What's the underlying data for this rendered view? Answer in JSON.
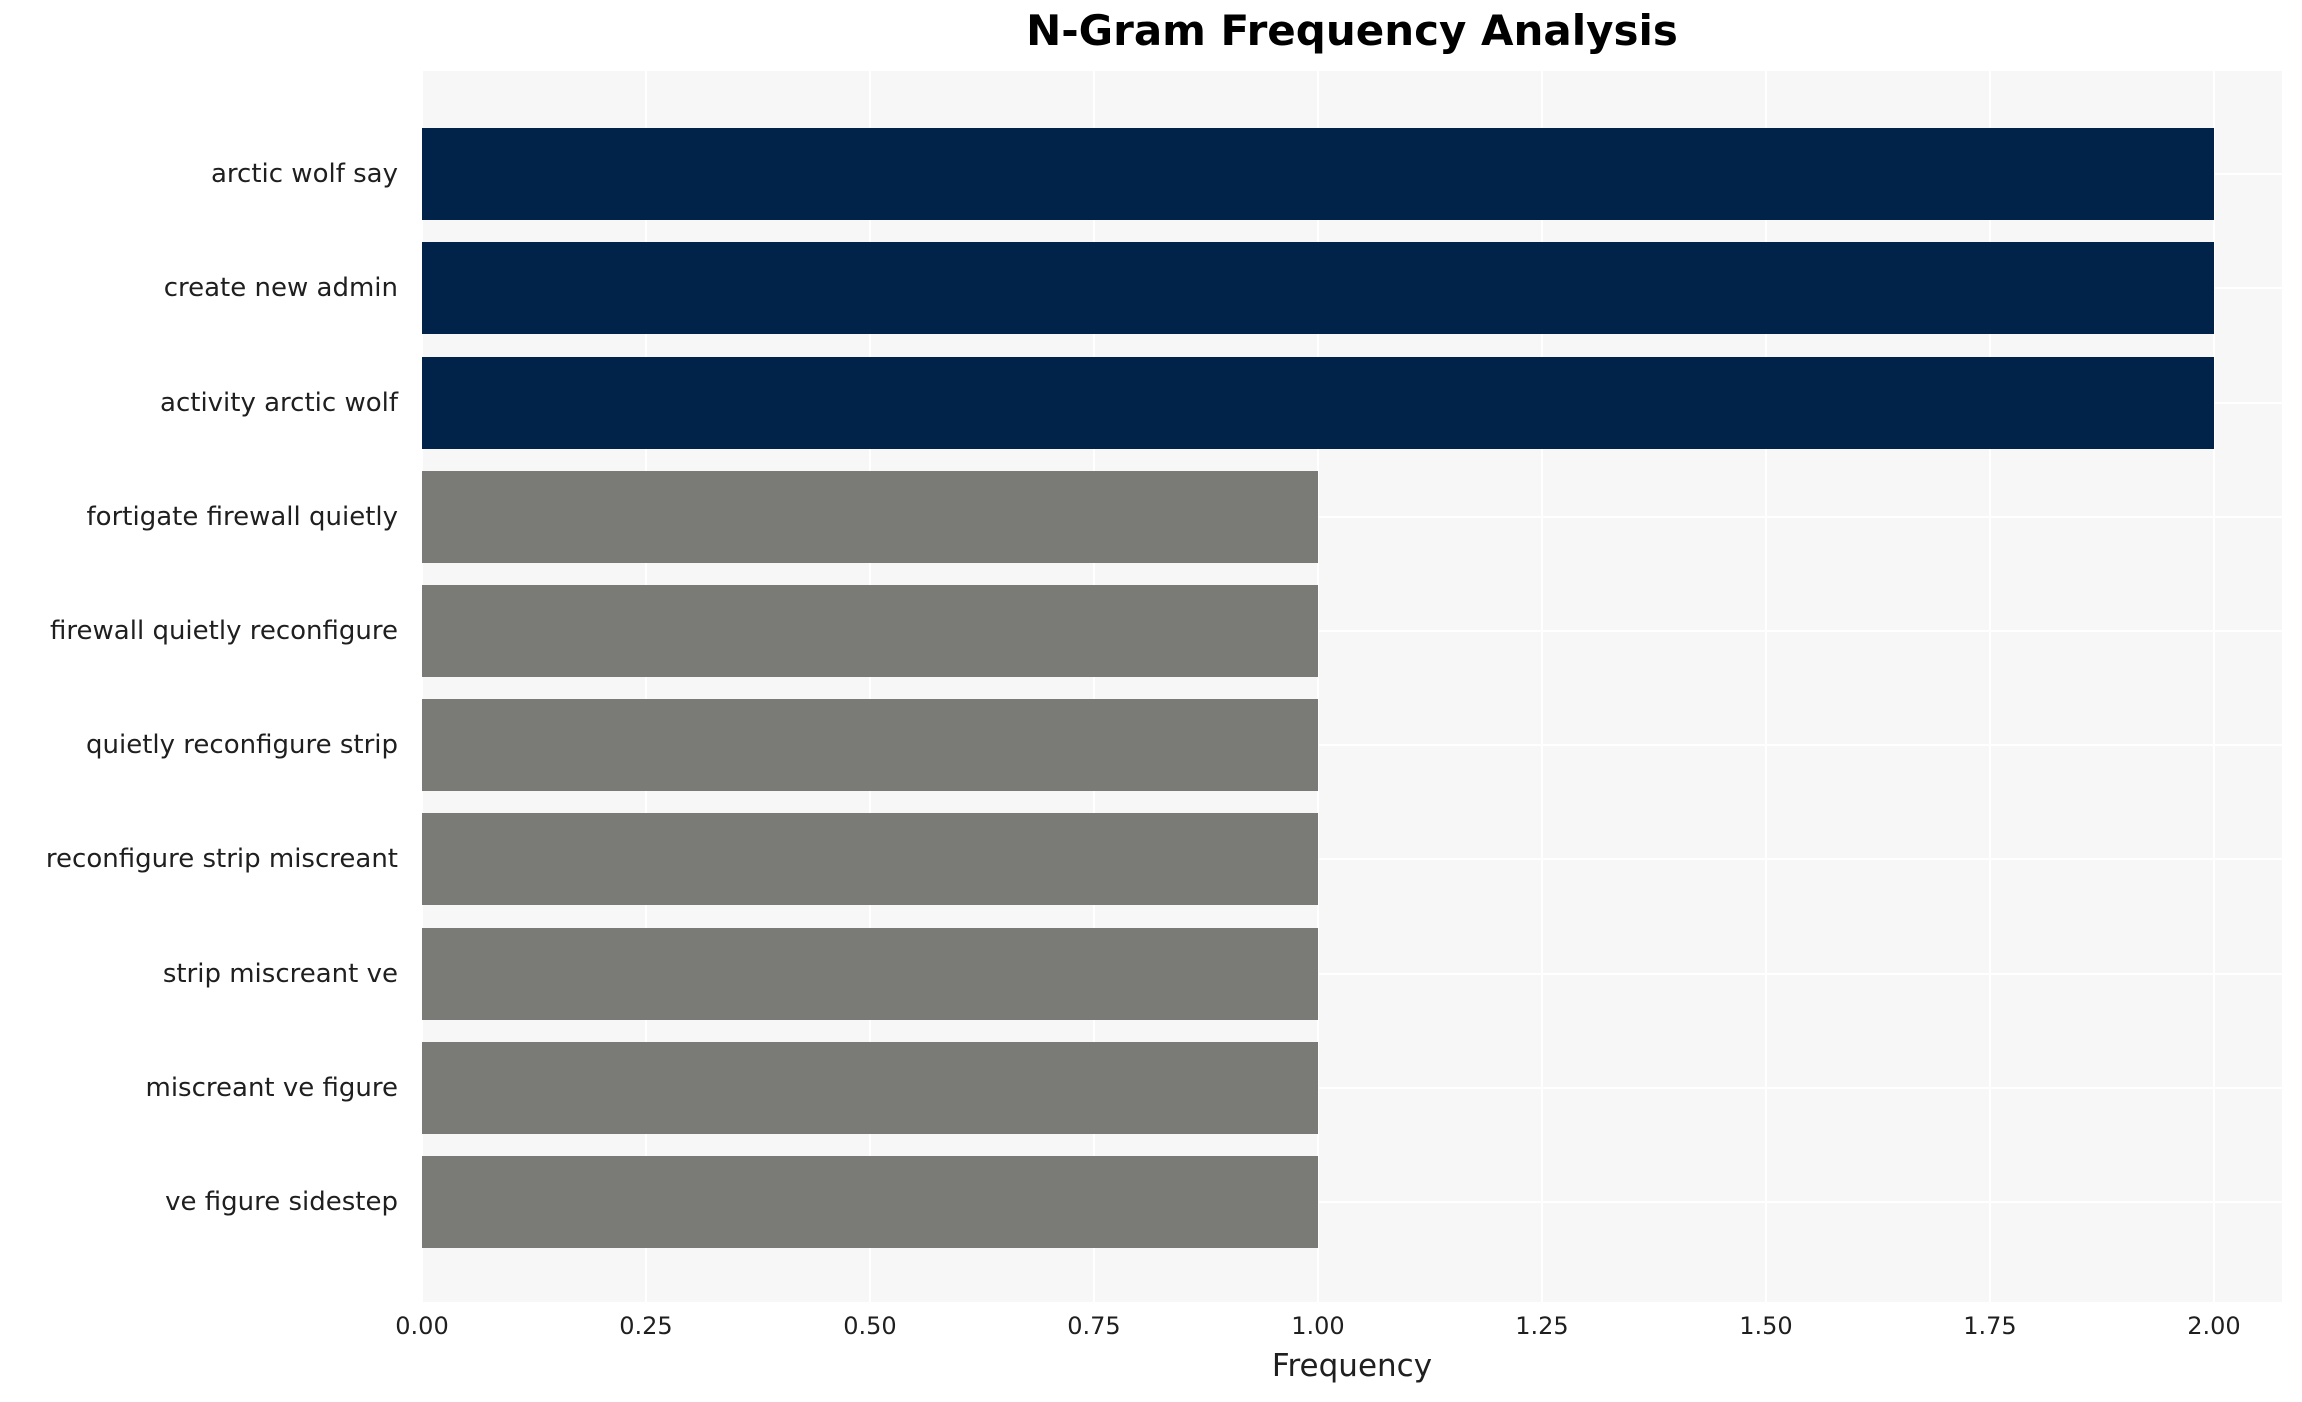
{
  "chart_data": {
    "type": "bar",
    "orientation": "horizontal",
    "title": "N-Gram Frequency Analysis",
    "xlabel": "Frequency",
    "ylabel": "",
    "categories": [
      "arctic wolf say",
      "create new admin",
      "activity arctic wolf",
      "fortigate firewall quietly",
      "firewall quietly reconfigure",
      "quietly reconfigure strip",
      "reconfigure strip miscreant",
      "strip miscreant ve",
      "miscreant ve figure",
      "ve figure sidestep"
    ],
    "values": [
      2,
      2,
      2,
      1,
      1,
      1,
      1,
      1,
      1,
      1
    ],
    "bar_colors": [
      "#022349",
      "#022349",
      "#022349",
      "#7a7a76",
      "#7a7a76",
      "#7a7a76",
      "#7a7a76",
      "#7a7a76",
      "#7a7a76",
      "#7a7a76"
    ],
    "xlim": [
      0,
      2.076
    ],
    "xticks": [
      0.0,
      0.25,
      0.5,
      0.75,
      1.0,
      1.25,
      1.5,
      1.75,
      2.0
    ],
    "xtick_labels": [
      "0.00",
      "0.25",
      "0.50",
      "0.75",
      "1.00",
      "1.25",
      "1.50",
      "1.75",
      "2.00"
    ],
    "grid": true,
    "legend": false,
    "style": {
      "highlight_color": "#022349",
      "base_color": "#7a7a76",
      "plot_background": "#f7f7f7",
      "grid_color": "#ffffff",
      "figure_background": "#ffffff",
      "text_color": "#1f1f1f",
      "title_color": "#000000"
    }
  }
}
